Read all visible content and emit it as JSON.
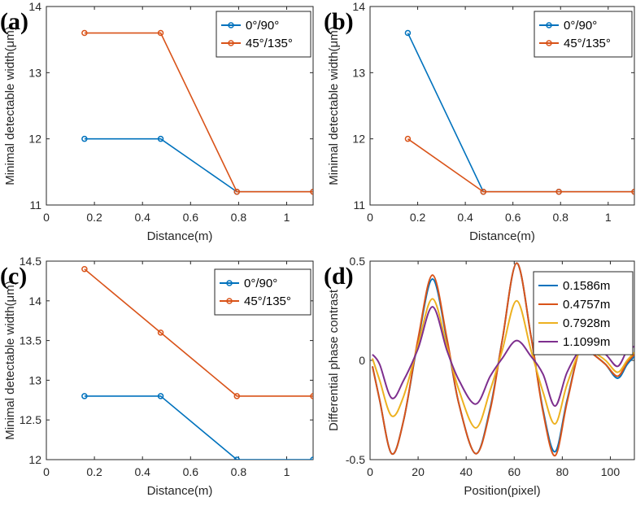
{
  "chart_data": [
    {
      "type": "line",
      "panel_label": "(a)",
      "xlabel": "Distance(m)",
      "ylabel": "Minimal detectable width(μm)",
      "xlim": [
        0,
        1.11
      ],
      "ylim": [
        11,
        14
      ],
      "xticks": [
        0,
        0.2,
        0.4,
        0.6,
        0.8,
        1
      ],
      "xtick_labels": [
        "0",
        "0.2",
        "0.4",
        "0.6",
        "0.8",
        "1"
      ],
      "yticks": [
        11,
        12,
        13,
        14
      ],
      "ytick_labels": [
        "11",
        "12",
        "13",
        "14"
      ],
      "legend_position": "top-right",
      "x": [
        0.1586,
        0.4757,
        0.7928,
        1.1099
      ],
      "series": [
        {
          "name": "0°/90°",
          "color": "#0072BD",
          "values": [
            12.0,
            12.0,
            11.2,
            11.2
          ]
        },
        {
          "name": "45°/135°",
          "color": "#D95319",
          "values": [
            13.6,
            13.6,
            11.2,
            11.2
          ]
        }
      ]
    },
    {
      "type": "line",
      "panel_label": "(b)",
      "xlabel": "Distance(m)",
      "ylabel": "Minimal detectable width(μm)",
      "xlim": [
        0,
        1.11
      ],
      "ylim": [
        11,
        14
      ],
      "xticks": [
        0,
        0.2,
        0.4,
        0.6,
        0.8,
        1
      ],
      "xtick_labels": [
        "0",
        "0.2",
        "0.4",
        "0.6",
        "0.8",
        "1"
      ],
      "yticks": [
        11,
        12,
        13,
        14
      ],
      "ytick_labels": [
        "11",
        "12",
        "13",
        "14"
      ],
      "legend_position": "top-right",
      "x": [
        0.1586,
        0.4757,
        0.7928,
        1.1099
      ],
      "series": [
        {
          "name": "0°/90°",
          "color": "#0072BD",
          "values": [
            13.6,
            11.2,
            11.2,
            11.2
          ]
        },
        {
          "name": "45°/135°",
          "color": "#D95319",
          "values": [
            12.0,
            11.2,
            11.2,
            11.2
          ]
        }
      ]
    },
    {
      "type": "line",
      "panel_label": "(c)",
      "xlabel": "Distance(m)",
      "ylabel": "Minimal detectable width(μm)",
      "xlim": [
        0,
        1.11
      ],
      "ylim": [
        12,
        14.5
      ],
      "xticks": [
        0,
        0.2,
        0.4,
        0.6,
        0.8,
        1
      ],
      "xtick_labels": [
        "0",
        "0.2",
        "0.4",
        "0.6",
        "0.8",
        "1"
      ],
      "yticks": [
        12,
        12.5,
        13,
        13.5,
        14,
        14.5
      ],
      "ytick_labels": [
        "12",
        "12.5",
        "13",
        "13.5",
        "14",
        "14.5"
      ],
      "legend_position": "top-right",
      "x": [
        0.1586,
        0.4757,
        0.7928,
        1.1099
      ],
      "series": [
        {
          "name": "0°/90°",
          "color": "#0072BD",
          "values": [
            12.8,
            12.8,
            12.0,
            12.0
          ]
        },
        {
          "name": "45°/135°",
          "color": "#D95319",
          "values": [
            14.4,
            13.6,
            12.8,
            12.8
          ]
        }
      ]
    },
    {
      "type": "line",
      "panel_label": "(d)",
      "xlabel": "Position(pixel)",
      "ylabel": "Differential phase contrast",
      "xlim": [
        0,
        110
      ],
      "ylim": [
        -0.5,
        0.5
      ],
      "xticks": [
        0,
        20,
        40,
        60,
        80,
        100
      ],
      "xtick_labels": [
        "0",
        "20",
        "40",
        "60",
        "80",
        "100"
      ],
      "yticks": [
        -0.5,
        0,
        0.5
      ],
      "ytick_labels": [
        "-0.5",
        "0",
        "0.5"
      ],
      "legend_position": "top-right",
      "x": [
        1,
        4,
        9,
        14,
        20,
        26,
        32,
        37,
        44,
        50,
        55,
        61,
        67,
        72,
        77,
        82,
        88,
        93,
        98,
        103,
        107,
        110
      ],
      "series": [
        {
          "name": "0.1586m",
          "color": "#0072BD",
          "values": [
            -0.03,
            -0.2,
            -0.47,
            -0.3,
            0.1,
            0.41,
            0.1,
            -0.22,
            -0.47,
            -0.24,
            0.1,
            0.49,
            0.12,
            -0.25,
            -0.46,
            -0.2,
            0.08,
            0.03,
            -0.02,
            -0.09,
            -0.02,
            0.02
          ]
        },
        {
          "name": "0.4757m",
          "color": "#D95319",
          "values": [
            -0.03,
            -0.2,
            -0.47,
            -0.3,
            0.11,
            0.43,
            0.11,
            -0.22,
            -0.47,
            -0.25,
            0.1,
            0.49,
            0.12,
            -0.26,
            -0.48,
            -0.21,
            0.08,
            0.03,
            -0.02,
            -0.08,
            -0.01,
            0.03
          ]
        },
        {
          "name": "0.7928m",
          "color": "#EDB120",
          "values": [
            0.01,
            -0.1,
            -0.28,
            -0.18,
            0.08,
            0.31,
            0.07,
            -0.15,
            -0.34,
            -0.15,
            0.05,
            0.3,
            0.05,
            -0.16,
            -0.32,
            -0.12,
            0.06,
            0.04,
            0.0,
            -0.06,
            0.0,
            0.04
          ]
        },
        {
          "name": "1.1099m",
          "color": "#7E2F8E",
          "values": [
            0.03,
            -0.02,
            -0.19,
            -0.1,
            0.06,
            0.27,
            0.05,
            -0.1,
            -0.22,
            -0.08,
            0.01,
            0.1,
            0.02,
            -0.07,
            -0.23,
            -0.06,
            0.06,
            0.05,
            0.03,
            -0.03,
            0.05,
            0.07
          ]
        }
      ]
    }
  ]
}
